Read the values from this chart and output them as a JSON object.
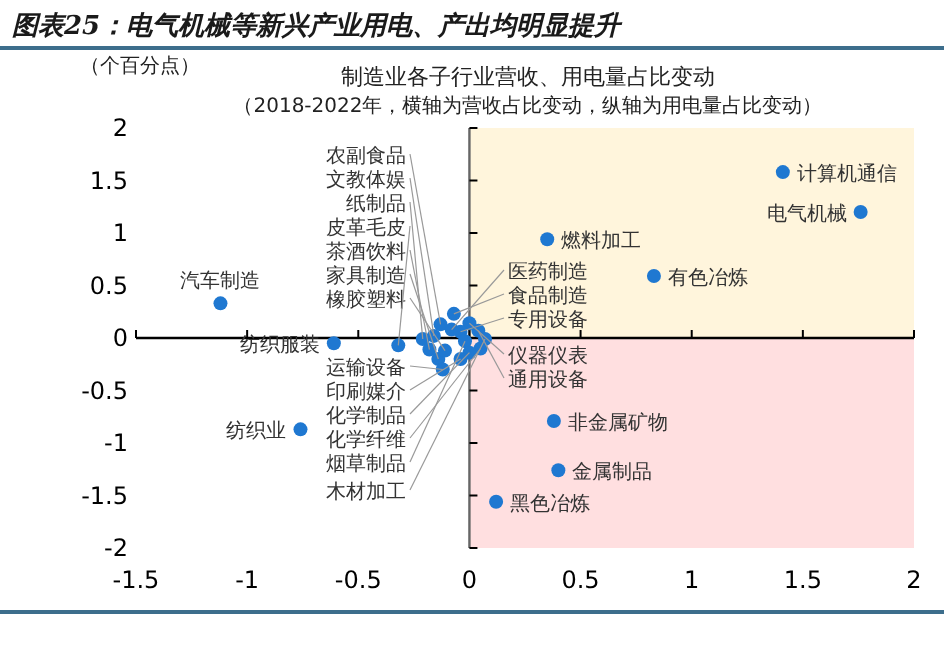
{
  "chart_data": {
    "type": "scatter",
    "title": "图表25：电气机械等新兴产业用电、产出均明显提升",
    "subtitle": "制造业各子行业营收、用电量占比变动",
    "ylabel": "（个百分点）",
    "annotations": [
      "（2018-2022年，横轴为营收占比变动，纵轴为用电量占比变动）"
    ],
    "xlim": [
      -1.5,
      2
    ],
    "xticks": [
      -1.5,
      -1,
      -0.5,
      0,
      0.5,
      1,
      1.5,
      2
    ],
    "ylim": [
      -2,
      2
    ],
    "yticks": [
      -2,
      -1.5,
      -1,
      -0.5,
      0,
      0.5,
      1,
      1.5,
      2
    ],
    "grid": false,
    "legend": false,
    "marker": "circle",
    "bands": [
      {
        "axis": "y",
        "from": 0,
        "to": 2,
        "color": "#fff5dc"
      },
      {
        "axis": "y",
        "from": -2,
        "to": 0,
        "color": "#ffdfe0"
      }
    ],
    "series": [
      {
        "name": "计算机通信",
        "color": "#1f78d1",
        "x": [
          1.41
        ],
        "values": [
          1.58
        ]
      },
      {
        "name": "电气机械",
        "color": "#1f78d1",
        "x": [
          1.76
        ],
        "values": [
          1.2
        ]
      },
      {
        "name": "燃料加工",
        "color": "#1f78d1",
        "x": [
          0.35
        ],
        "values": [
          0.94
        ]
      },
      {
        "name": "有色冶炼",
        "color": "#1f78d1",
        "x": [
          0.83
        ],
        "values": [
          0.59
        ]
      },
      {
        "name": "汽车制造",
        "color": "#1f78d1",
        "x": [
          -1.12
        ],
        "values": [
          0.33
        ]
      },
      {
        "name": "纺织服装",
        "color": "#1f78d1",
        "x": [
          -0.61
        ],
        "values": [
          -0.05
        ]
      },
      {
        "name": "纺织业",
        "color": "#1f78d1",
        "x": [
          -0.76
        ],
        "values": [
          -0.87
        ]
      },
      {
        "name": "非金属矿物",
        "color": "#1f78d1",
        "x": [
          0.38
        ],
        "values": [
          -0.79
        ]
      },
      {
        "name": "金属制品",
        "color": "#1f78d1",
        "x": [
          0.4
        ],
        "values": [
          -1.26
        ]
      },
      {
        "name": "黑色冶炼",
        "color": "#1f78d1",
        "x": [
          0.12
        ],
        "values": [
          -1.56
        ]
      },
      {
        "name": "皮革毛皮",
        "color": "#1f78d1",
        "x": [
          -0.32
        ],
        "values": [
          -0.07
        ]
      },
      {
        "name": "纸制品",
        "color": "#1f78d1",
        "x": [
          -0.21
        ],
        "values": [
          -0.01
        ]
      },
      {
        "name": "文教体娱",
        "color": "#1f78d1",
        "x": [
          -0.16
        ],
        "values": [
          0.02
        ]
      },
      {
        "name": "农副食品",
        "color": "#1f78d1",
        "x": [
          -0.13
        ],
        "values": [
          0.13
        ]
      },
      {
        "name": "医药制造",
        "color": "#1f78d1",
        "x": [
          -0.08
        ],
        "values": [
          0.08
        ]
      },
      {
        "name": "食品制造",
        "color": "#1f78d1",
        "x": [
          -0.07
        ],
        "values": [
          0.23
        ]
      },
      {
        "name": "通用设备",
        "color": "#1f78d1",
        "x": [
          0.04
        ],
        "values": [
          0.07
        ]
      },
      {
        "name": "仪器仪表",
        "color": "#1f78d1",
        "x": [
          0.0
        ],
        "values": [
          0.14
        ]
      },
      {
        "name": "木材加工",
        "color": "#1f78d1",
        "x": [
          0.07
        ],
        "values": [
          -0.01
        ]
      },
      {
        "name": "专用设备",
        "color": "#1f78d1",
        "x": [
          -0.04
        ],
        "values": [
          0.06
        ]
      },
      {
        "name": "烟草制品",
        "color": "#1f78d1",
        "x": [
          -0.02
        ],
        "values": [
          -0.03
        ]
      },
      {
        "name": "化学纤维",
        "color": "#1f78d1",
        "x": [
          0.05
        ],
        "values": [
          -0.1
        ]
      },
      {
        "name": "化学制品",
        "color": "#1f78d1",
        "x": [
          0.0
        ],
        "values": [
          -0.14
        ]
      },
      {
        "name": "印刷媒介",
        "color": "#1f78d1",
        "x": [
          -0.04
        ],
        "values": [
          -0.2
        ]
      },
      {
        "name": "家具制造",
        "color": "#1f78d1",
        "x": [
          -0.14
        ],
        "values": [
          -0.2
        ]
      },
      {
        "name": "茶酒饮料",
        "color": "#1f78d1",
        "x": [
          -0.18
        ],
        "values": [
          -0.11
        ]
      },
      {
        "name": "运输设备",
        "color": "#1f78d1",
        "x": [
          -0.12
        ],
        "values": [
          -0.3
        ]
      },
      {
        "name": "橡胶塑料",
        "color": "#1f78d1",
        "x": [
          -0.11
        ],
        "values": [
          -0.12
        ]
      }
    ]
  }
}
